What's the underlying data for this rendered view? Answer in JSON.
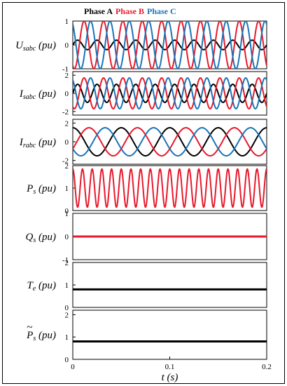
{
  "colors": {
    "phase_a": "#000000",
    "phase_b": "#e8192c",
    "phase_c": "#1a73b8"
  },
  "chart_data": {
    "type": "line",
    "legend": {
      "position": "top",
      "entries": [
        "Phase A",
        "Phase B",
        "Phase C"
      ]
    },
    "xlabel": "t (s)",
    "xlim": [
      0,
      0.2
    ],
    "xticks": [
      "0",
      "0.1",
      "0.2"
    ],
    "grid": false,
    "panels": [
      {
        "ylabel": "Usabc (pu)",
        "label_main": "U",
        "label_sub": "sabc",
        "label_unit": " (pu)",
        "ylim": [
          -1,
          1
        ],
        "yticks": [
          "1",
          "0",
          "-1"
        ],
        "series": [
          {
            "name": "Phase A",
            "color": "#000000",
            "amplitude": 0.2,
            "frequency_hz": 50,
            "phase_deg": 0,
            "offset": 0
          },
          {
            "name": "Phase B",
            "color": "#e8192c",
            "amplitude": 1.0,
            "frequency_hz": 50,
            "phase_deg": -120,
            "offset": 0
          },
          {
            "name": "Phase C",
            "color": "#1a73b8",
            "amplitude": 1.0,
            "frequency_hz": 50,
            "phase_deg": 120,
            "offset": 0
          }
        ]
      },
      {
        "ylabel": "Isabc (pu)",
        "label_main": "I",
        "label_sub": "sabc",
        "label_unit": " (pu)",
        "ylim": [
          -2.4,
          2.4
        ],
        "yticks": [
          "2",
          "0",
          "-2"
        ],
        "series": [
          {
            "name": "Phase A",
            "color": "#000000",
            "amplitude": 1.0,
            "frequency_hz": 50,
            "phase_deg": 0,
            "offset": 0
          },
          {
            "name": "Phase B",
            "color": "#e8192c",
            "amplitude": 1.7,
            "frequency_hz": 50,
            "phase_deg": -120,
            "offset": 0
          },
          {
            "name": "Phase C",
            "color": "#1a73b8",
            "amplitude": 1.7,
            "frequency_hz": 50,
            "phase_deg": 120,
            "offset": 0
          }
        ]
      },
      {
        "ylabel": "Irabc (pu)",
        "label_main": "I",
        "label_sub": "rabc",
        "label_unit": " (pu)",
        "ylim": [
          -2.4,
          2.4
        ],
        "yticks": [
          "2",
          "0",
          "-2"
        ],
        "series": [
          {
            "name": "Phase A",
            "color": "#000000",
            "amplitude": 1.5,
            "frequency_hz": 20,
            "phase_deg": 90,
            "offset": 0
          },
          {
            "name": "Phase B",
            "color": "#e8192c",
            "amplitude": 1.5,
            "frequency_hz": 20,
            "phase_deg": -30,
            "offset": 0
          },
          {
            "name": "Phase C",
            "color": "#1a73b8",
            "amplitude": 1.5,
            "frequency_hz": 20,
            "phase_deg": 210,
            "offset": 0
          }
        ]
      },
      {
        "ylabel": "Ps (pu)",
        "label_main": "P",
        "label_sub": "s",
        "label_unit": " (pu)",
        "ylim": [
          0,
          2
        ],
        "yticks": [
          "2",
          "1",
          "0"
        ],
        "series": [
          {
            "name": "Ps",
            "color": "#e8192c",
            "amplitude": 0.85,
            "frequency_hz": 100,
            "phase_deg": 90,
            "offset": 1.0
          }
        ]
      },
      {
        "ylabel": "Qs (pu)",
        "label_main": "Q",
        "label_sub": "s",
        "label_unit": " (pu)",
        "ylim": [
          -1,
          1
        ],
        "yticks": [
          "1",
          "0",
          "-1"
        ],
        "series": [
          {
            "name": "Qs",
            "color": "#e8192c",
            "amplitude": 0.0,
            "frequency_hz": 0,
            "phase_deg": 0,
            "offset": 0.0,
            "thick": true
          }
        ]
      },
      {
        "ylabel": "Te (pu)",
        "label_main": "T",
        "label_sub": "e",
        "label_unit": " (pu)",
        "ylim": [
          0,
          2
        ],
        "yticks": [
          "2",
          "1",
          "0"
        ],
        "series": [
          {
            "name": "Te",
            "color": "#000000",
            "amplitude": 0.0,
            "frequency_hz": 0,
            "phase_deg": 0,
            "offset": 0.8,
            "thick": true
          }
        ]
      },
      {
        "ylabel": "P̃s (pu)",
        "label_main": "P",
        "label_sub": "s",
        "label_unit": " (pu)",
        "tilde": true,
        "ylim": [
          0,
          2.2
        ],
        "yticks": [
          "2",
          "1",
          "0"
        ],
        "series": [
          {
            "name": "P̃s",
            "color": "#000000",
            "amplitude": 0.0,
            "frequency_hz": 0,
            "phase_deg": 0,
            "offset": 0.8,
            "thick": true
          }
        ]
      }
    ]
  }
}
